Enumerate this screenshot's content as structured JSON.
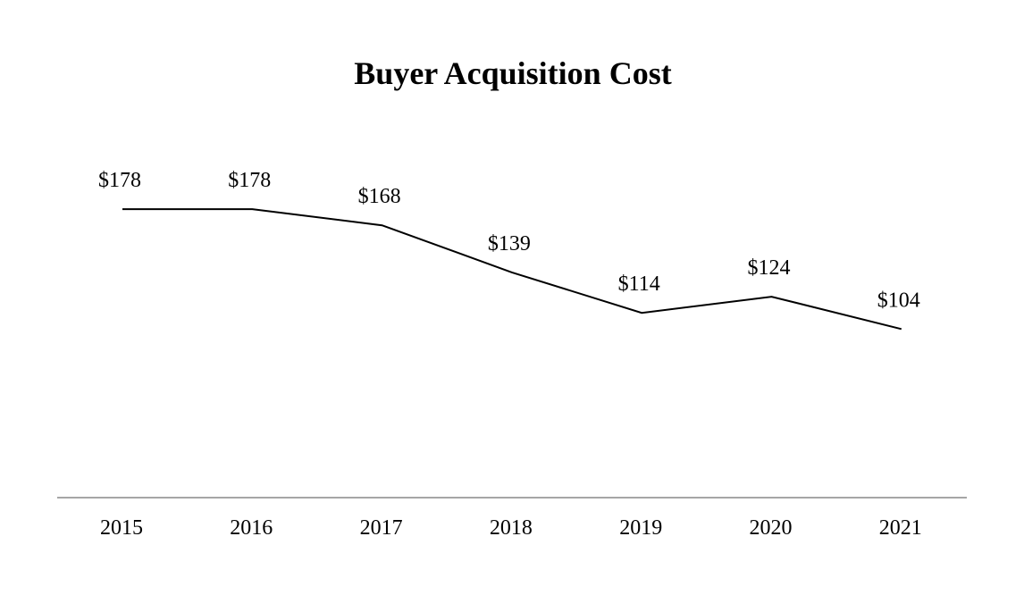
{
  "chart_data": {
    "type": "line",
    "title": "Buyer Acquisition Cost",
    "xlabel": "",
    "ylabel": "",
    "categories": [
      "2015",
      "2016",
      "2017",
      "2018",
      "2019",
      "2020",
      "2021"
    ],
    "series": [
      {
        "values": [
          178,
          178,
          168,
          139,
          114,
          124,
          104
        ],
        "data_labels": [
          "$178",
          "$178",
          "$168",
          "$139",
          "$114",
          "$124",
          "$104"
        ],
        "color": "#000000"
      }
    ],
    "ylim": [
      0,
      350
    ],
    "grid": false,
    "y_axis_visible": false,
    "baseline_color": "#a6a6a6"
  }
}
